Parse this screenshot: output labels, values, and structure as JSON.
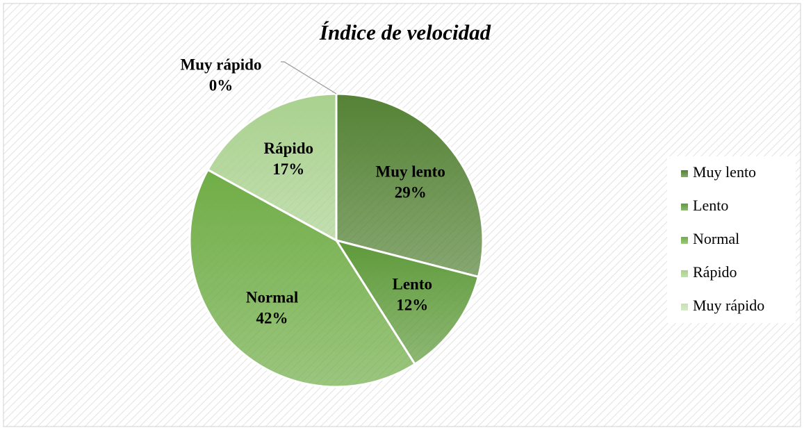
{
  "chart_data": {
    "type": "pie",
    "title": "Índice de velocidad",
    "categories": [
      "Muy lento",
      "Lento",
      "Normal",
      "Rápido",
      "Muy rápido"
    ],
    "values": [
      29,
      12,
      42,
      17,
      0
    ],
    "value_labels": [
      "29%",
      "12%",
      "42%",
      "17%",
      "0%"
    ],
    "colors": [
      "#548235",
      "#5e9a3a",
      "#70ad47",
      "#a9d18e",
      "#c5e0b4"
    ],
    "legend": "right"
  }
}
